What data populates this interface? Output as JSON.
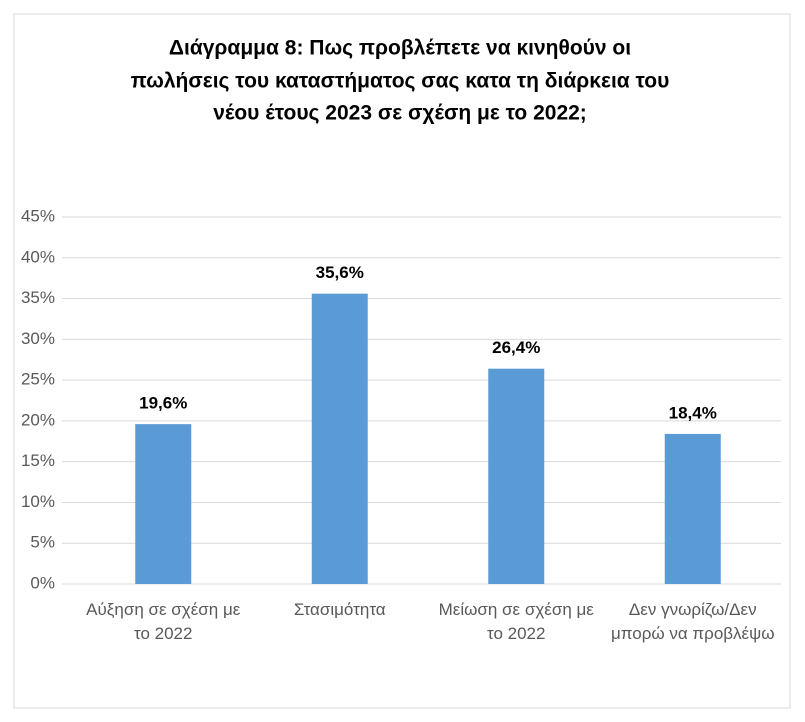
{
  "chart_data": {
    "type": "bar",
    "title": [
      "Διάγραμμα 8: Πως προβλέπετε να κινηθούν οι",
      "πωλήσεις του καταστήματος σας κατα τη διάρκεια του",
      "νέου έτους 2023 σε σχέση με το 2022;"
    ],
    "categories": [
      "Αύξηση σε σχέση με το 2022",
      "Στασιμότητα",
      "Μείωση σε σχέση με το 2022",
      "Δεν γνωρίζω/Δεν μπορώ να προβλέψω"
    ],
    "values": [
      19.6,
      35.6,
      26.4,
      18.4
    ],
    "value_labels": [
      "19,6%",
      "35,6%",
      "26,4%",
      "18,4%"
    ],
    "color": "#5b9bd5",
    "ylim": [
      0,
      45
    ],
    "yticks": [
      {
        "value": 0,
        "label": "0%"
      },
      {
        "value": 5,
        "label": "5%"
      },
      {
        "value": 10,
        "label": "10%"
      },
      {
        "value": 15,
        "label": "15%"
      },
      {
        "value": 20,
        "label": "20%"
      },
      {
        "value": 25,
        "label": "25%"
      },
      {
        "value": 30,
        "label": "30%"
      },
      {
        "value": 35,
        "label": "35%"
      },
      {
        "value": 40,
        "label": "40%"
      },
      {
        "value": 45,
        "label": "45%"
      }
    ],
    "grid": true
  }
}
